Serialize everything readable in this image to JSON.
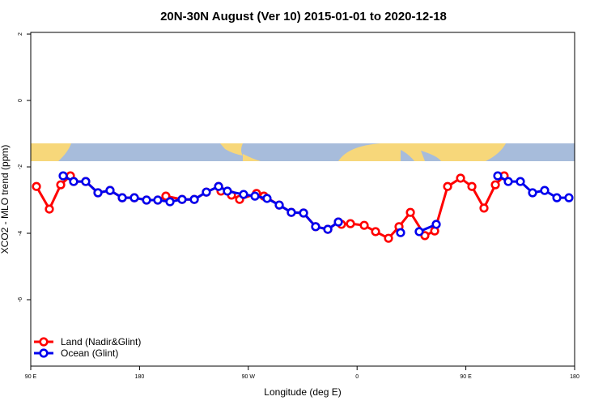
{
  "chart_data": {
    "type": "line",
    "title": "20N-30N August (Ver 10)   2015-01-01 to 2020-12-18",
    "x_label": "Longitude (deg E)",
    "y_label": "XCO2 - MLO trend (ppm)",
    "xlim": [
      90,
      540
    ],
    "xticks": [
      {
        "value": 90,
        "label": "90 E"
      },
      {
        "value": 180,
        "label": "180"
      },
      {
        "value": 270,
        "label": "90 W"
      },
      {
        "value": 360,
        "label": "0"
      },
      {
        "value": 450,
        "label": "90 E"
      },
      {
        "value": 540,
        "label": "180"
      }
    ],
    "ylim": [
      -8,
      2.05
    ],
    "yticks": [
      2,
      0,
      -2,
      -4,
      -6
    ],
    "legend": "bottom-left",
    "series": [
      {
        "name": "Land (Nadir&Glint)",
        "color": "#ff0000",
        "x": [
          94.7,
          105.4,
          114.8,
          122.8,
          125.5,
          135.5,
          145.6,
          155.6,
          165.7,
          175.7,
          185.8,
          195.1,
          201.8,
          215.2,
          225.3,
          235.3,
          245.4,
          247.4,
          256.1,
          262.8,
          276.8,
          282.9,
          295.6,
          305.6,
          315.7,
          325.7,
          335.8,
          344.5,
          347.1,
          354.5,
          365.9,
          375.3,
          386.0,
          394.7,
          404.1,
          416.1,
          424.2,
          434.9,
          445.6,
          455.0,
          465.0,
          474.4,
          481.7
        ],
        "values": [
          -2.59,
          -3.27,
          -2.54,
          -2.27,
          -2.44,
          -2.44,
          -2.78,
          -2.71,
          -2.93,
          -2.93,
          -3.0,
          -3.0,
          -2.88,
          -2.98,
          -2.98,
          -2.76,
          -2.59,
          -2.73,
          -2.85,
          -2.98,
          -2.8,
          -2.88,
          -3.15,
          -3.37,
          -3.39,
          -3.8,
          -3.88,
          -3.66,
          -3.73,
          -3.71,
          -3.76,
          -3.95,
          -4.15,
          -3.8,
          -3.37,
          -4.07,
          -3.93,
          -2.59,
          -2.34,
          -2.59,
          -3.24,
          -2.54,
          -2.27
        ]
      },
      {
        "name": "Ocean (Glint)",
        "color": "#0000ee",
        "x": [
          116.8,
          125.5,
          135.5,
          145.6,
          155.6,
          165.7,
          175.7,
          185.8,
          195.1,
          205.2,
          215.2,
          225.3,
          235.3,
          245.4,
          252.7,
          266.1,
          275.5,
          285.5,
          295.6,
          305.6,
          315.7,
          325.7,
          335.8,
          344.5,
          null,
          396.0,
          null,
          411.4,
          425.5,
          null,
          476.4,
          485.1,
          495.1,
          505.2,
          515.2,
          525.3,
          535.3
        ],
        "values": [
          -2.27,
          -2.44,
          -2.44,
          -2.78,
          -2.71,
          -2.93,
          -2.93,
          -3.0,
          -3.0,
          -3.05,
          -2.98,
          -2.98,
          -2.76,
          -2.59,
          -2.73,
          -2.83,
          -2.88,
          -2.95,
          -3.15,
          -3.37,
          -3.39,
          -3.8,
          -3.88,
          -3.66,
          null,
          -3.98,
          null,
          -3.95,
          -3.73,
          null,
          -2.27,
          -2.44,
          -2.44,
          -2.78,
          -2.71,
          -2.93,
          -2.93
        ]
      }
    ]
  }
}
